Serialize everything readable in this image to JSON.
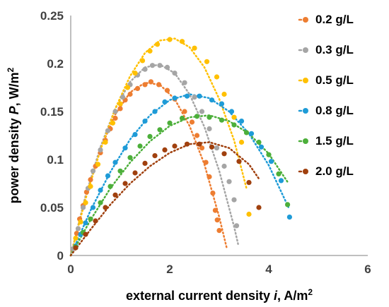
{
  "chart_data": {
    "type": "scatter",
    "xlabel_prefix": "external current density ",
    "xlabel_var": "i",
    "xlabel_suffix": ", A/m",
    "xlabel_sup": "2",
    "ylabel_prefix": "power density ",
    "ylabel_var": "P",
    "ylabel_suffix": ", W/m",
    "ylabel_sup": "2",
    "xlim": [
      0,
      6
    ],
    "ylim": [
      0,
      0.25
    ],
    "x_ticks": [
      "0",
      "2",
      "4",
      "6"
    ],
    "y_ticks": [
      "0",
      "0.05",
      "0.1",
      "0.15",
      "0.2",
      "0.25"
    ],
    "grid": false,
    "legend_position": "right",
    "trendline_style": "dotted",
    "series": [
      {
        "name": "0.2 g/L",
        "color": "#ED7D31",
        "points": [
          [
            0.05,
            0.007
          ],
          [
            0.12,
            0.023
          ],
          [
            0.18,
            0.038
          ],
          [
            0.25,
            0.052
          ],
          [
            0.32,
            0.066
          ],
          [
            0.4,
            0.079
          ],
          [
            0.5,
            0.093
          ],
          [
            0.6,
            0.107
          ],
          [
            0.7,
            0.12
          ],
          [
            0.8,
            0.132
          ],
          [
            0.9,
            0.143
          ],
          [
            1.0,
            0.153
          ],
          [
            1.1,
            0.162
          ],
          [
            1.2,
            0.168
          ],
          [
            1.35,
            0.174
          ],
          [
            1.5,
            0.178
          ],
          [
            1.62,
            0.181
          ],
          [
            1.78,
            0.178
          ],
          [
            1.95,
            0.172
          ],
          [
            2.1,
            0.163
          ],
          [
            2.3,
            0.15
          ],
          [
            2.45,
            0.139
          ],
          [
            2.55,
            0.125
          ],
          [
            2.65,
            0.112
          ],
          [
            2.73,
            0.097
          ],
          [
            2.8,
            0.082
          ],
          [
            2.87,
            0.065
          ],
          [
            2.92,
            0.047
          ],
          [
            2.96,
            0.037
          ],
          [
            3.0,
            0.026
          ]
        ],
        "fit": [
          [
            0,
            0
          ],
          [
            0.3,
            0.062
          ],
          [
            0.6,
            0.111
          ],
          [
            0.9,
            0.147
          ],
          [
            1.2,
            0.17
          ],
          [
            1.5,
            0.18
          ],
          [
            1.8,
            0.178
          ],
          [
            2.1,
            0.163
          ],
          [
            2.4,
            0.135
          ],
          [
            2.7,
            0.095
          ],
          [
            3.0,
            0.04
          ],
          [
            3.15,
            0.008
          ]
        ]
      },
      {
        "name": "0.3 g/L",
        "color": "#A5A5A5",
        "points": [
          [
            0.05,
            0.007
          ],
          [
            0.15,
            0.028
          ],
          [
            0.25,
            0.05
          ],
          [
            0.35,
            0.07
          ],
          [
            0.45,
            0.088
          ],
          [
            0.6,
            0.11
          ],
          [
            0.75,
            0.13
          ],
          [
            0.9,
            0.15
          ],
          [
            1.05,
            0.165
          ],
          [
            1.2,
            0.178
          ],
          [
            1.35,
            0.188
          ],
          [
            1.5,
            0.194
          ],
          [
            1.65,
            0.198
          ],
          [
            1.8,
            0.198
          ],
          [
            1.95,
            0.196
          ],
          [
            2.1,
            0.19
          ],
          [
            2.3,
            0.18
          ],
          [
            2.5,
            0.165
          ],
          [
            2.65,
            0.15
          ],
          [
            2.8,
            0.132
          ],
          [
            2.95,
            0.112
          ],
          [
            3.1,
            0.093
          ],
          [
            3.2,
            0.077
          ],
          [
            3.3,
            0.058
          ],
          [
            3.35,
            0.031
          ]
        ],
        "fit": [
          [
            0,
            0
          ],
          [
            0.3,
            0.062
          ],
          [
            0.6,
            0.113
          ],
          [
            0.9,
            0.153
          ],
          [
            1.2,
            0.181
          ],
          [
            1.5,
            0.196
          ],
          [
            1.8,
            0.199
          ],
          [
            2.1,
            0.19
          ],
          [
            2.4,
            0.168
          ],
          [
            2.7,
            0.134
          ],
          [
            3.0,
            0.088
          ],
          [
            3.3,
            0.03
          ],
          [
            3.38,
            0.012
          ]
        ]
      },
      {
        "name": "0.5 g/L",
        "color": "#FFC000",
        "points": [
          [
            0.1,
            0.018
          ],
          [
            0.2,
            0.035
          ],
          [
            0.3,
            0.055
          ],
          [
            0.4,
            0.072
          ],
          [
            0.55,
            0.095
          ],
          [
            0.7,
            0.118
          ],
          [
            0.85,
            0.138
          ],
          [
            1.0,
            0.158
          ],
          [
            1.15,
            0.175
          ],
          [
            1.3,
            0.19
          ],
          [
            1.45,
            0.203
          ],
          [
            1.6,
            0.213
          ],
          [
            1.75,
            0.22
          ],
          [
            2.0,
            0.225
          ],
          [
            2.25,
            0.223
          ],
          [
            2.5,
            0.216
          ],
          [
            2.75,
            0.202
          ],
          [
            2.95,
            0.186
          ],
          [
            3.1,
            0.168
          ],
          [
            3.3,
            0.144
          ],
          [
            3.45,
            0.118
          ],
          [
            3.6,
            0.043
          ]
        ],
        "fit": [
          [
            0,
            0
          ],
          [
            0.3,
            0.059
          ],
          [
            0.6,
            0.11
          ],
          [
            0.9,
            0.153
          ],
          [
            1.2,
            0.187
          ],
          [
            1.5,
            0.211
          ],
          [
            1.8,
            0.224
          ],
          [
            2.1,
            0.226
          ],
          [
            2.4,
            0.217
          ],
          [
            2.7,
            0.196
          ],
          [
            3.0,
            0.163
          ],
          [
            3.3,
            0.12
          ],
          [
            3.55,
            0.07
          ]
        ]
      },
      {
        "name": "0.8 g/L",
        "color": "#1E9BD7",
        "points": [
          [
            0.1,
            0.01
          ],
          [
            0.2,
            0.022
          ],
          [
            0.3,
            0.034
          ],
          [
            0.45,
            0.05
          ],
          [
            0.6,
            0.068
          ],
          [
            0.75,
            0.083
          ],
          [
            0.9,
            0.097
          ],
          [
            1.1,
            0.112
          ],
          [
            1.3,
            0.126
          ],
          [
            1.5,
            0.14
          ],
          [
            1.7,
            0.15
          ],
          [
            1.9,
            0.16
          ],
          [
            2.1,
            0.164
          ],
          [
            2.35,
            0.166
          ],
          [
            2.6,
            0.166
          ],
          [
            2.85,
            0.162
          ],
          [
            3.05,
            0.158
          ],
          [
            3.25,
            0.15
          ],
          [
            3.45,
            0.14
          ],
          [
            3.65,
            0.127
          ],
          [
            3.85,
            0.113
          ],
          [
            4.05,
            0.098
          ],
          [
            4.25,
            0.078
          ],
          [
            4.42,
            0.04
          ]
        ],
        "fit": [
          [
            0,
            0
          ],
          [
            0.4,
            0.047
          ],
          [
            0.8,
            0.087
          ],
          [
            1.2,
            0.121
          ],
          [
            1.6,
            0.146
          ],
          [
            2.0,
            0.162
          ],
          [
            2.4,
            0.168
          ],
          [
            2.8,
            0.164
          ],
          [
            3.2,
            0.15
          ],
          [
            3.6,
            0.127
          ],
          [
            4.0,
            0.094
          ],
          [
            4.4,
            0.05
          ]
        ]
      },
      {
        "name": "1.5 g/L",
        "color": "#4CAF3A",
        "points": [
          [
            0.1,
            0.009
          ],
          [
            0.25,
            0.024
          ],
          [
            0.4,
            0.038
          ],
          [
            0.6,
            0.055
          ],
          [
            0.8,
            0.072
          ],
          [
            1.0,
            0.088
          ],
          [
            1.2,
            0.102
          ],
          [
            1.4,
            0.114
          ],
          [
            1.6,
            0.124
          ],
          [
            1.8,
            0.131
          ],
          [
            2.0,
            0.138
          ],
          [
            2.25,
            0.143
          ],
          [
            2.55,
            0.145
          ],
          [
            2.8,
            0.144
          ],
          [
            3.05,
            0.141
          ],
          [
            3.3,
            0.136
          ],
          [
            3.55,
            0.128
          ],
          [
            3.8,
            0.118
          ],
          [
            4.0,
            0.105
          ],
          [
            4.2,
            0.085
          ],
          [
            4.38,
            0.053
          ]
        ],
        "fit": [
          [
            0,
            0
          ],
          [
            0.4,
            0.037
          ],
          [
            0.8,
            0.07
          ],
          [
            1.2,
            0.097
          ],
          [
            1.6,
            0.119
          ],
          [
            2.0,
            0.135
          ],
          [
            2.4,
            0.144
          ],
          [
            2.8,
            0.146
          ],
          [
            3.2,
            0.14
          ],
          [
            3.6,
            0.127
          ],
          [
            4.0,
            0.106
          ],
          [
            4.4,
            0.075
          ]
        ]
      },
      {
        "name": "2.0 g/L",
        "color": "#A0400E",
        "points": [
          [
            0.1,
            0.008
          ],
          [
            0.3,
            0.022
          ],
          [
            0.5,
            0.036
          ],
          [
            0.7,
            0.05
          ],
          [
            0.9,
            0.063
          ],
          [
            1.1,
            0.075
          ],
          [
            1.3,
            0.086
          ],
          [
            1.5,
            0.096
          ],
          [
            1.7,
            0.104
          ],
          [
            1.9,
            0.11
          ],
          [
            2.1,
            0.114
          ],
          [
            2.35,
            0.116
          ],
          [
            2.6,
            0.116
          ],
          [
            2.85,
            0.113
          ],
          [
            3.1,
            0.106
          ],
          [
            3.4,
            0.098
          ],
          [
            3.6,
            0.076
          ],
          [
            3.8,
            0.05
          ]
        ],
        "fit": [
          [
            0,
            0
          ],
          [
            0.4,
            0.027
          ],
          [
            0.8,
            0.053
          ],
          [
            1.2,
            0.075
          ],
          [
            1.6,
            0.093
          ],
          [
            2.0,
            0.107
          ],
          [
            2.4,
            0.116
          ],
          [
            2.8,
            0.118
          ],
          [
            3.2,
            0.112
          ],
          [
            3.6,
            0.095
          ],
          [
            3.8,
            0.08
          ]
        ]
      }
    ]
  }
}
